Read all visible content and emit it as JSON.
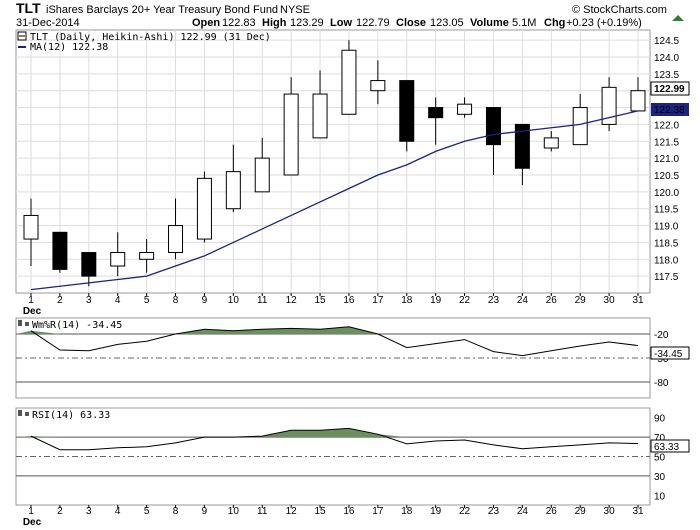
{
  "header": {
    "symbol": "TLT",
    "name": "iShares Barclays 20+ Year Treasury Bond Fund",
    "exchange": "NYSE",
    "date": "31-Dec-2014",
    "brand": "© StockCharts.com",
    "open_label": "Open",
    "open_value": "122.83",
    "high_label": "High",
    "high_value": "123.29",
    "low_label": "Low",
    "low_value": "122.79",
    "close_label": "Close",
    "close_value": "123.05",
    "volume_label": "Volume",
    "volume_value": "5.1M",
    "chg_label": "Chg",
    "chg_value": "+0.23 (+0.19%)"
  },
  "legend": {
    "price_label": "TLT (Daily, Heikin-Ashi) 122.99 (31 Dec)",
    "ma_label": "MA(12) 122.38",
    "wr_label": "Wm%R(14) -34.45",
    "rsi_label": "RSI(14) 63.33"
  },
  "colors": {
    "ma_line": "#1a237e",
    "candle_up": "#ffffff",
    "candle_down": "#000000",
    "indicator_fill": "#6b8f5e",
    "grid": "#dddddd"
  },
  "chart_data": [
    {
      "type": "candlestick",
      "title": "TLT (Daily, Heikin-Ashi)",
      "categories": [
        "1",
        "2",
        "3",
        "4",
        "5",
        "8",
        "9",
        "10",
        "11",
        "12",
        "15",
        "16",
        "17",
        "18",
        "19",
        "22",
        "23",
        "24",
        "26",
        "29",
        "30",
        "31"
      ],
      "month_label": "Dec",
      "ylim": [
        117.0,
        124.8
      ],
      "y_ticks": [
        "117.5",
        "118.0",
        "118.5",
        "119.0",
        "119.5",
        "120.0",
        "120.5",
        "121.0",
        "121.5",
        "122.0",
        "122.5",
        "123.0",
        "123.5",
        "124.0",
        "124.5"
      ],
      "candles": [
        {
          "o": 118.6,
          "h": 119.8,
          "l": 117.8,
          "c": 119.3
        },
        {
          "o": 118.8,
          "h": 118.8,
          "l": 117.6,
          "c": 117.7
        },
        {
          "o": 118.2,
          "h": 118.2,
          "l": 117.2,
          "c": 117.5
        },
        {
          "o": 117.8,
          "h": 118.8,
          "l": 117.5,
          "c": 118.2
        },
        {
          "o": 118.0,
          "h": 118.6,
          "l": 117.6,
          "c": 118.2
        },
        {
          "o": 118.2,
          "h": 119.8,
          "l": 118.0,
          "c": 119.0
        },
        {
          "o": 118.6,
          "h": 120.6,
          "l": 118.5,
          "c": 120.4
        },
        {
          "o": 119.5,
          "h": 121.4,
          "l": 119.4,
          "c": 120.6
        },
        {
          "o": 120.0,
          "h": 121.6,
          "l": 120.0,
          "c": 121.0
        },
        {
          "o": 120.5,
          "h": 123.4,
          "l": 120.5,
          "c": 122.9
        },
        {
          "o": 121.6,
          "h": 123.6,
          "l": 121.6,
          "c": 122.9
        },
        {
          "o": 122.3,
          "h": 124.5,
          "l": 122.3,
          "c": 124.2
        },
        {
          "o": 123.0,
          "h": 123.9,
          "l": 122.6,
          "c": 123.3
        },
        {
          "o": 123.3,
          "h": 123.3,
          "l": 121.2,
          "c": 121.5
        },
        {
          "o": 122.5,
          "h": 122.8,
          "l": 121.4,
          "c": 122.2
        },
        {
          "o": 122.3,
          "h": 122.8,
          "l": 122.2,
          "c": 122.6
        },
        {
          "o": 122.5,
          "h": 122.5,
          "l": 120.5,
          "c": 121.4
        },
        {
          "o": 122.0,
          "h": 122.0,
          "l": 120.2,
          "c": 120.7
        },
        {
          "o": 121.3,
          "h": 121.8,
          "l": 121.2,
          "c": 121.6
        },
        {
          "o": 121.4,
          "h": 122.9,
          "l": 121.4,
          "c": 122.5
        },
        {
          "o": 122.0,
          "h": 123.4,
          "l": 121.8,
          "c": 123.1
        },
        {
          "o": 122.4,
          "h": 123.4,
          "l": 122.4,
          "c": 123.0
        }
      ],
      "ma_series": {
        "name": "MA(12)",
        "values": [
          117.1,
          117.2,
          117.3,
          117.4,
          117.5,
          117.8,
          118.1,
          118.5,
          118.9,
          119.3,
          119.7,
          120.1,
          120.5,
          120.8,
          121.2,
          121.5,
          121.7,
          121.8,
          121.9,
          122.0,
          122.2,
          122.4
        ]
      },
      "last_price_label": "122.99",
      "ma_last_label": "122.38"
    },
    {
      "type": "line",
      "title": "Wm%R(14)",
      "ylim": [
        -100,
        0
      ],
      "y_ticks": [
        "-20",
        "-50",
        "-80"
      ],
      "reference_lines": [
        -20,
        -50,
        -80
      ],
      "values": [
        -16.0,
        -40.0,
        -41.0,
        -33.0,
        -29.0,
        -20.0,
        -14.0,
        -16.0,
        -14.0,
        -13.0,
        -14.0,
        -11.0,
        -20.0,
        -37.0,
        -32.0,
        -27.0,
        -42.0,
        -47.0,
        -41.0,
        -35.0,
        -30.0,
        -34.45
      ],
      "last_label": "-34.45"
    },
    {
      "type": "line",
      "title": "RSI(14)",
      "ylim": [
        0,
        100
      ],
      "y_ticks": [
        "90",
        "70",
        "50",
        "30",
        "10"
      ],
      "reference_lines": [
        70,
        50,
        30
      ],
      "values": [
        71.0,
        57.0,
        57.0,
        59.0,
        60.0,
        64.0,
        70.0,
        70.0,
        71.0,
        77.0,
        77.0,
        79.0,
        73.0,
        63.0,
        66.0,
        67.0,
        62.0,
        58.0,
        60.0,
        62.0,
        64.0,
        63.33
      ],
      "last_label": "63.33"
    }
  ]
}
